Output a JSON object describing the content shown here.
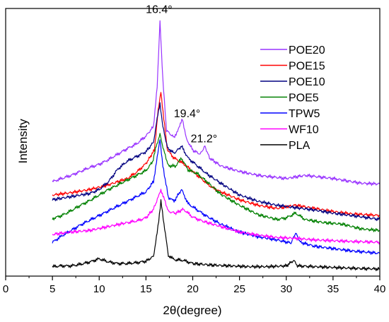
{
  "chart_data": {
    "type": "line",
    "title": "",
    "xlabel": "2θ(degree)",
    "ylabel": "Intensity",
    "xlim": [
      0,
      40
    ],
    "xticks": [
      0,
      5,
      10,
      15,
      20,
      25,
      30,
      35,
      40
    ],
    "ylim": [
      0,
      340
    ],
    "y_ticks_shown": false,
    "grid": false,
    "legend_position": "top-right",
    "annotations": [
      {
        "text": "16.4°",
        "x": 16.4,
        "y": 334
      },
      {
        "text": "19.4°",
        "x": 19.4,
        "y": 202
      },
      {
        "text": "21.2°",
        "x": 21.2,
        "y": 170
      }
    ],
    "series": [
      {
        "name": "POE20",
        "color": "#9933ff",
        "points": [
          [
            5,
            120
          ],
          [
            6,
            124
          ],
          [
            7,
            128
          ],
          [
            8,
            133
          ],
          [
            9,
            138
          ],
          [
            10,
            142
          ],
          [
            11,
            148
          ],
          [
            12,
            155
          ],
          [
            13,
            162
          ],
          [
            14,
            168
          ],
          [
            15,
            178
          ],
          [
            15.8,
            190
          ],
          [
            16.2,
            240
          ],
          [
            16.5,
            325
          ],
          [
            16.8,
            250
          ],
          [
            17.2,
            185
          ],
          [
            18,
            176
          ],
          [
            18.6,
            190
          ],
          [
            18.9,
            200
          ],
          [
            19.3,
            175
          ],
          [
            20,
            160
          ],
          [
            20.8,
            155
          ],
          [
            21.3,
            165
          ],
          [
            21.8,
            150
          ],
          [
            23,
            140
          ],
          [
            25,
            133
          ],
          [
            27,
            128
          ],
          [
            30,
            124
          ],
          [
            32,
            128
          ],
          [
            35,
            124
          ],
          [
            38,
            118
          ],
          [
            40,
            117
          ]
        ]
      },
      {
        "name": "POE15",
        "color": "#ff0000",
        "points": [
          [
            5,
            103
          ],
          [
            7,
            106
          ],
          [
            9,
            110
          ],
          [
            11,
            116
          ],
          [
            13,
            124
          ],
          [
            14,
            132
          ],
          [
            15,
            143
          ],
          [
            15.9,
            160
          ],
          [
            16.3,
            210
          ],
          [
            16.6,
            235
          ],
          [
            16.9,
            200
          ],
          [
            17.3,
            160
          ],
          [
            18,
            150
          ],
          [
            19,
            143
          ],
          [
            20,
            133
          ],
          [
            21,
            123
          ],
          [
            22,
            113
          ],
          [
            23,
            107
          ],
          [
            25,
            97
          ],
          [
            27,
            90
          ],
          [
            29,
            86
          ],
          [
            31,
            90
          ],
          [
            33,
            86
          ],
          [
            35,
            82
          ],
          [
            37,
            79
          ],
          [
            40,
            77
          ]
        ]
      },
      {
        "name": "POE10",
        "color": "#000080",
        "points": [
          [
            5,
            97
          ],
          [
            7,
            101
          ],
          [
            9,
            105
          ],
          [
            10,
            110
          ],
          [
            11,
            120
          ],
          [
            12,
            136
          ],
          [
            13,
            146
          ],
          [
            14,
            152
          ],
          [
            15,
            158
          ],
          [
            15.8,
            170
          ],
          [
            16.2,
            200
          ],
          [
            16.5,
            220
          ],
          [
            16.8,
            190
          ],
          [
            17.3,
            163
          ],
          [
            18,
            156
          ],
          [
            18.8,
            165
          ],
          [
            19.5,
            150
          ],
          [
            20.5,
            140
          ],
          [
            21.5,
            130
          ],
          [
            23,
            118
          ],
          [
            25,
            103
          ],
          [
            27,
            95
          ],
          [
            29,
            90
          ],
          [
            31,
            87
          ],
          [
            33,
            84
          ],
          [
            35,
            80
          ],
          [
            37,
            77
          ],
          [
            40,
            72
          ]
        ]
      },
      {
        "name": "POE5",
        "color": "#008000",
        "points": [
          [
            5,
            73
          ],
          [
            6,
            77
          ],
          [
            7,
            83
          ],
          [
            8,
            90
          ],
          [
            9,
            96
          ],
          [
            10,
            103
          ],
          [
            11,
            110
          ],
          [
            12,
            116
          ],
          [
            13,
            122
          ],
          [
            14,
            128
          ],
          [
            15,
            134
          ],
          [
            15.7,
            145
          ],
          [
            16.1,
            165
          ],
          [
            16.5,
            180
          ],
          [
            16.9,
            160
          ],
          [
            17.4,
            140
          ],
          [
            18.2,
            140
          ],
          [
            18.8,
            150
          ],
          [
            19.5,
            135
          ],
          [
            20.5,
            130
          ],
          [
            21.5,
            120
          ],
          [
            23,
            104
          ],
          [
            25,
            90
          ],
          [
            27,
            78
          ],
          [
            29,
            72
          ],
          [
            30,
            74
          ],
          [
            31,
            80
          ],
          [
            32,
            72
          ],
          [
            34,
            68
          ],
          [
            36,
            66
          ],
          [
            38,
            60
          ],
          [
            40,
            58
          ]
        ]
      },
      {
        "name": "TPW5",
        "color": "#0000ff",
        "points": [
          [
            5,
            43
          ],
          [
            6,
            51
          ],
          [
            7,
            58
          ],
          [
            8,
            65
          ],
          [
            9,
            71
          ],
          [
            10,
            77
          ],
          [
            11,
            83
          ],
          [
            12,
            89
          ],
          [
            13,
            95
          ],
          [
            14,
            101
          ],
          [
            15,
            107
          ],
          [
            15.8,
            120
          ],
          [
            16.2,
            150
          ],
          [
            16.5,
            175
          ],
          [
            16.8,
            140
          ],
          [
            17.4,
            100
          ],
          [
            18,
            95
          ],
          [
            18.8,
            110
          ],
          [
            19.5,
            92
          ],
          [
            20.5,
            84
          ],
          [
            21.5,
            76
          ],
          [
            23,
            66
          ],
          [
            25,
            56
          ],
          [
            27,
            50
          ],
          [
            29,
            46
          ],
          [
            30.5,
            42
          ],
          [
            31,
            55
          ],
          [
            31.5,
            43
          ],
          [
            33,
            38
          ],
          [
            35,
            35
          ],
          [
            37,
            32
          ],
          [
            40,
            29
          ]
        ]
      },
      {
        "name": "WF10",
        "color": "#ff00ff",
        "points": [
          [
            5,
            53
          ],
          [
            7,
            56
          ],
          [
            9,
            58
          ],
          [
            11,
            63
          ],
          [
            13,
            68
          ],
          [
            14,
            70
          ],
          [
            15,
            74
          ],
          [
            15.8,
            85
          ],
          [
            16.3,
            100
          ],
          [
            16.6,
            110
          ],
          [
            16.9,
            100
          ],
          [
            17.4,
            82
          ],
          [
            18.2,
            80
          ],
          [
            19,
            85
          ],
          [
            20,
            75
          ],
          [
            21,
            70
          ],
          [
            23,
            63
          ],
          [
            25,
            56
          ],
          [
            27,
            52
          ],
          [
            29,
            49
          ],
          [
            31,
            48
          ],
          [
            33,
            46
          ],
          [
            35,
            45
          ],
          [
            37,
            44
          ],
          [
            40,
            43
          ]
        ]
      },
      {
        "name": "PLA",
        "color": "#000000",
        "points": [
          [
            5,
            12
          ],
          [
            6,
            13
          ],
          [
            7,
            13
          ],
          [
            8,
            15
          ],
          [
            9,
            18
          ],
          [
            10,
            22
          ],
          [
            11,
            18
          ],
          [
            12,
            16
          ],
          [
            13,
            16
          ],
          [
            14,
            17
          ],
          [
            15,
            19
          ],
          [
            15.8,
            25
          ],
          [
            16.2,
            55
          ],
          [
            16.6,
            95
          ],
          [
            17,
            60
          ],
          [
            17.4,
            26
          ],
          [
            18,
            21
          ],
          [
            19,
            20
          ],
          [
            20,
            16
          ],
          [
            22,
            14
          ],
          [
            24,
            13
          ],
          [
            26,
            12
          ],
          [
            28,
            12
          ],
          [
            30,
            13
          ],
          [
            30.8,
            20
          ],
          [
            31.2,
            13
          ],
          [
            33,
            12
          ],
          [
            35,
            11
          ],
          [
            37,
            10
          ],
          [
            40,
            9
          ]
        ]
      }
    ]
  }
}
